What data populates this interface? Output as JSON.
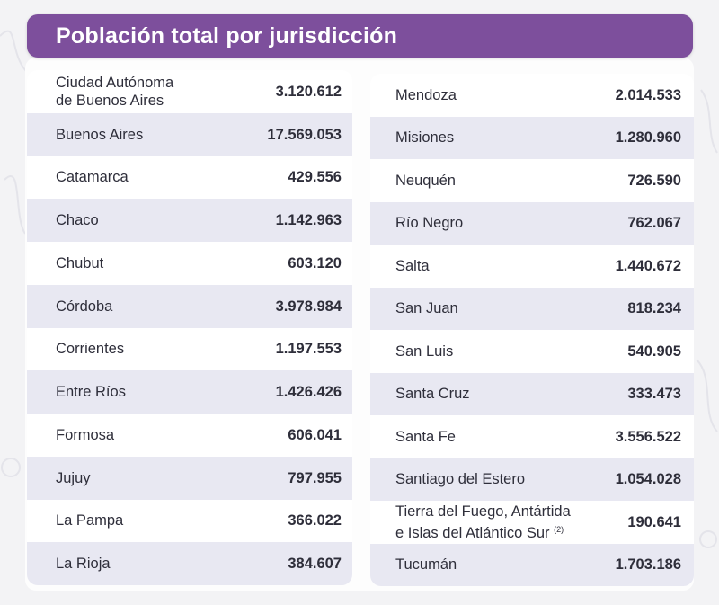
{
  "title": "Población total por jurisdicción",
  "left_rows": [
    {
      "name_lines": [
        "Ciudad Autónoma",
        "de Buenos Aires"
      ],
      "value": "3.120.612"
    },
    {
      "name_lines": [
        "Buenos Aires"
      ],
      "value": "17.569.053"
    },
    {
      "name_lines": [
        "Catamarca"
      ],
      "value": "429.556"
    },
    {
      "name_lines": [
        "Chaco"
      ],
      "value": "1.142.963"
    },
    {
      "name_lines": [
        "Chubut"
      ],
      "value": "603.120"
    },
    {
      "name_lines": [
        "Córdoba"
      ],
      "value": "3.978.984"
    },
    {
      "name_lines": [
        "Corrientes"
      ],
      "value": "1.197.553"
    },
    {
      "name_lines": [
        "Entre Ríos"
      ],
      "value": "1.426.426"
    },
    {
      "name_lines": [
        "Formosa"
      ],
      "value": "606.041"
    },
    {
      "name_lines": [
        "Jujuy"
      ],
      "value": "797.955"
    },
    {
      "name_lines": [
        "La Pampa"
      ],
      "value": "366.022"
    },
    {
      "name_lines": [
        "La Rioja"
      ],
      "value": "384.607"
    }
  ],
  "right_rows": [
    {
      "name_lines": [
        "Mendoza"
      ],
      "value": "2.014.533"
    },
    {
      "name_lines": [
        "Misiones"
      ],
      "value": "1.280.960"
    },
    {
      "name_lines": [
        "Neuquén"
      ],
      "value": "726.590"
    },
    {
      "name_lines": [
        "Río Negro"
      ],
      "value": "762.067"
    },
    {
      "name_lines": [
        "Salta"
      ],
      "value": "1.440.672"
    },
    {
      "name_lines": [
        "San Juan"
      ],
      "value": "818.234"
    },
    {
      "name_lines": [
        "San Luis"
      ],
      "value": "540.905"
    },
    {
      "name_lines": [
        "Santa Cruz"
      ],
      "value": "333.473"
    },
    {
      "name_lines": [
        "Santa Fe"
      ],
      "value": "3.556.522"
    },
    {
      "name_lines": [
        "Santiago del Estero"
      ],
      "value": "1.054.028"
    },
    {
      "name_lines": [
        "Tierra del Fuego, Antártida",
        "e Islas del Atlántico Sur"
      ],
      "note": "(2)",
      "value": "190.641"
    },
    {
      "name_lines": [
        "Tucumán"
      ],
      "value": "1.703.186"
    }
  ],
  "colors": {
    "header": "#7d4f9c",
    "row_alt": "#e8e8f2",
    "text": "#2e2e3a"
  }
}
